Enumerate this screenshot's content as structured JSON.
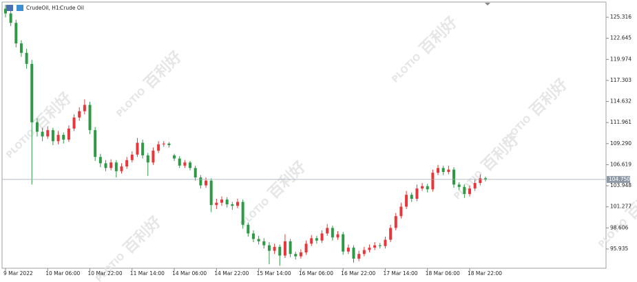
{
  "chart_data": {
    "type": "candlestick",
    "title": "CrudeOil, H1:",
    "subtitle": "Crude Oil",
    "watermark": "百利好",
    "watermark_brand": "PLOTIO",
    "up_color": "#e8373a",
    "down_color": "#2e9a46",
    "ylim": [
      93.49,
      127.24
    ],
    "xlim": [
      -1.3,
      227.7
    ],
    "yticks": [
      95.935,
      98.606,
      101.277,
      103.948,
      106.619,
      {
        "value": 109.29,
        "label": "109.290"
      },
      111.961,
      114.632,
      117.303,
      119.974,
      122.645,
      125.316
    ],
    "xticks": [
      {
        "value": 0,
        "label": "9 Mar 2022"
      },
      {
        "value": 16,
        "label": "10 Mar 06:00"
      },
      {
        "value": 32,
        "label": "10 Mar 22:00"
      },
      {
        "value": 48,
        "label": "11 Mar 14:00"
      },
      {
        "value": 64,
        "label": "14 Mar 06:00"
      },
      {
        "value": 80,
        "label": "14 Mar 22:00"
      },
      {
        "value": 96,
        "label": "15 Mar 14:00"
      },
      {
        "value": 112,
        "label": "16 Mar 06:00"
      },
      {
        "value": 128,
        "label": "16 Mar 22:00"
      },
      {
        "value": 144,
        "label": "17 Mar 14:00"
      },
      {
        "value": 160,
        "label": "18 Mar 06:00"
      },
      {
        "value": 176,
        "label": "18 Mar 22:00"
      }
    ],
    "current_price": {
      "value": 104.75,
      "label": "104.750"
    },
    "x": [
      0,
      2,
      4,
      6,
      8,
      10,
      12,
      14,
      16,
      18,
      20,
      22,
      24,
      26,
      28,
      30,
      32,
      34,
      36,
      38,
      40,
      42,
      44,
      46,
      48,
      50,
      52,
      54,
      56,
      58,
      60,
      62,
      64,
      66,
      68,
      70,
      72,
      74,
      76,
      78,
      80,
      82,
      84,
      86,
      88,
      90,
      92,
      94,
      96,
      98,
      100,
      102,
      104,
      106,
      108,
      110,
      112,
      114,
      116,
      118,
      120,
      122,
      124,
      126,
      128,
      130,
      132,
      134,
      136,
      138,
      140,
      142,
      144,
      146,
      148,
      150,
      152,
      154,
      156,
      158,
      160,
      162,
      164,
      166,
      168,
      170,
      172,
      174,
      176,
      178,
      180,
      182
    ],
    "candles": [
      [
        126.4,
        126.9,
        125.3,
        125.8
      ],
      [
        125.8,
        126.2,
        124.2,
        124.6
      ],
      [
        124.6,
        125.0,
        121.5,
        122.0
      ],
      [
        122.0,
        122.4,
        120.3,
        120.8
      ],
      [
        120.8,
        121.3,
        118.8,
        119.4
      ],
      [
        119.4,
        119.9,
        104.1,
        112.0
      ],
      [
        112.0,
        112.5,
        110.2,
        110.8
      ],
      [
        110.8,
        111.3,
        109.6,
        110.2
      ],
      [
        110.2,
        111.5,
        109.9,
        111.0
      ],
      [
        111.0,
        111.3,
        109.1,
        109.6
      ],
      [
        109.6,
        110.9,
        109.2,
        110.4
      ],
      [
        110.4,
        110.7,
        109.3,
        109.8
      ],
      [
        109.8,
        111.6,
        109.5,
        111.2
      ],
      [
        111.2,
        113.0,
        110.9,
        112.6
      ],
      [
        112.6,
        113.9,
        112.2,
        113.4
      ],
      [
        113.4,
        114.9,
        113.0,
        114.2
      ],
      [
        114.2,
        114.6,
        110.5,
        111.0
      ],
      [
        111.0,
        111.4,
        107.1,
        107.6
      ],
      [
        107.6,
        108.0,
        106.3,
        106.8
      ],
      [
        106.8,
        107.2,
        105.8,
        106.2
      ],
      [
        106.2,
        107.3,
        105.9,
        106.9
      ],
      [
        106.9,
        107.2,
        105.0,
        105.8
      ],
      [
        105.8,
        106.8,
        105.5,
        106.4
      ],
      [
        106.4,
        107.6,
        106.1,
        107.2
      ],
      [
        107.2,
        108.3,
        106.9,
        107.9
      ],
      [
        107.9,
        110.0,
        107.6,
        109.4
      ],
      [
        109.4,
        109.8,
        107.4,
        107.8
      ],
      [
        107.8,
        108.1,
        105.2,
        106.9
      ],
      [
        106.9,
        108.8,
        106.6,
        108.4
      ],
      [
        108.4,
        109.6,
        108.1,
        109.2
      ],
      [
        109.2,
        109.6,
        108.9,
        109.3
      ],
      [
        109.3,
        109.5,
        108.8,
        109.1
      ],
      [
        107.8,
        108.0,
        107.1,
        107.4
      ],
      [
        107.4,
        107.7,
        106.2,
        106.5
      ],
      [
        106.5,
        107.2,
        106.2,
        106.9
      ],
      [
        106.9,
        107.1,
        105.9,
        106.2
      ],
      [
        106.2,
        106.5,
        104.6,
        105.0
      ],
      [
        105.0,
        105.3,
        103.6,
        104.0
      ],
      [
        104.0,
        105.0,
        103.7,
        104.6
      ],
      [
        104.6,
        104.9,
        100.6,
        101.5
      ],
      [
        101.5,
        102.3,
        101.0,
        101.8
      ],
      [
        101.8,
        102.6,
        101.4,
        102.2
      ],
      [
        102.2,
        102.5,
        101.2,
        101.6
      ],
      [
        101.6,
        101.9,
        100.9,
        101.4
      ],
      [
        101.4,
        102.3,
        101.1,
        101.9
      ],
      [
        101.9,
        102.2,
        98.5,
        99.0
      ],
      [
        99.0,
        99.3,
        97.5,
        97.9
      ],
      [
        97.9,
        98.3,
        96.8,
        97.2
      ],
      [
        97.2,
        97.6,
        96.5,
        96.9
      ],
      [
        96.9,
        97.3,
        96.0,
        96.4
      ],
      [
        96.4,
        96.8,
        94.0,
        95.7
      ],
      [
        95.7,
        96.6,
        95.3,
        96.2
      ],
      [
        96.2,
        96.5,
        93.8,
        95.1
      ],
      [
        95.1,
        97.8,
        94.8,
        96.9
      ],
      [
        96.9,
        97.2,
        94.9,
        95.3
      ],
      [
        95.3,
        95.6,
        94.6,
        95.0
      ],
      [
        95.0,
        95.9,
        94.7,
        95.5
      ],
      [
        95.5,
        97.0,
        95.2,
        96.6
      ],
      [
        96.6,
        97.7,
        96.3,
        97.3
      ],
      [
        97.3,
        97.6,
        96.6,
        97.0
      ],
      [
        97.0,
        98.3,
        96.7,
        97.9
      ],
      [
        97.9,
        99.1,
        97.6,
        98.6
      ],
      [
        98.6,
        98.9,
        97.0,
        97.4
      ],
      [
        97.4,
        98.2,
        97.1,
        97.8
      ],
      [
        97.8,
        98.1,
        95.2,
        95.6
      ],
      [
        95.6,
        96.5,
        95.3,
        96.1
      ],
      [
        96.1,
        96.4,
        94.2,
        94.7
      ],
      [
        94.7,
        95.7,
        94.4,
        95.3
      ],
      [
        95.3,
        96.2,
        95.0,
        95.8
      ],
      [
        95.8,
        96.5,
        95.5,
        96.1
      ],
      [
        96.1,
        96.8,
        95.8,
        96.4
      ],
      [
        96.4,
        96.7,
        96.0,
        96.3
      ],
      [
        96.3,
        97.5,
        96.0,
        97.1
      ],
      [
        97.1,
        99.0,
        96.8,
        98.6
      ],
      [
        98.6,
        100.5,
        98.3,
        100.1
      ],
      [
        100.1,
        101.8,
        99.8,
        101.3
      ],
      [
        101.3,
        103.3,
        101.0,
        102.8
      ],
      [
        102.8,
        103.1,
        101.9,
        102.3
      ],
      [
        102.3,
        104.1,
        102.0,
        103.6
      ],
      [
        103.6,
        104.3,
        103.3,
        103.9
      ],
      [
        103.9,
        104.2,
        103.1,
        103.5
      ],
      [
        103.5,
        106.0,
        103.2,
        105.6
      ],
      [
        105.6,
        106.6,
        105.3,
        106.2
      ],
      [
        106.2,
        106.5,
        105.3,
        105.7
      ],
      [
        105.7,
        106.5,
        105.4,
        106.0
      ],
      [
        106.0,
        106.3,
        103.7,
        104.1
      ],
      [
        104.1,
        104.4,
        103.4,
        103.8
      ],
      [
        103.8,
        104.1,
        102.4,
        102.9
      ],
      [
        102.9,
        104.0,
        102.6,
        103.6
      ],
      [
        103.6,
        104.7,
        103.3,
        104.3
      ],
      [
        104.3,
        105.4,
        104.0,
        104.9
      ],
      [
        104.9,
        105.1,
        104.5,
        104.75
      ]
    ]
  }
}
